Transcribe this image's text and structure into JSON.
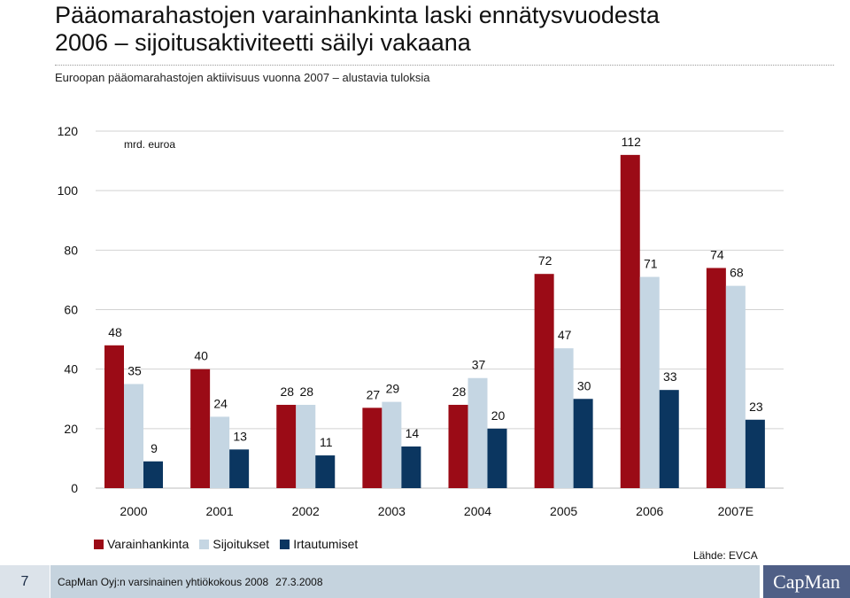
{
  "header": {
    "title_line1": "Pääomarahastojen varainhankinta laski ennätysvuodesta",
    "title_line2": "2006 – sijoitusaktiviteetti säilyi vakaana",
    "subtitle": "Euroopan pääomarahastojen aktiivisuus vuonna 2007 – alustavia tuloksia"
  },
  "colors": {
    "varainhankinta": "#9b0b16",
    "sijoitukset": "#c5d6e3",
    "irtautumiset": "#0b3660"
  },
  "chart_data": {
    "type": "bar",
    "unit_label": "mrd. euroa",
    "categories": [
      "2000",
      "2001",
      "2002",
      "2003",
      "2004",
      "2005",
      "2006",
      "2007E"
    ],
    "series": [
      {
        "name": "Varainhankinta",
        "values": [
          48,
          40,
          28,
          27,
          28,
          72,
          112,
          74
        ]
      },
      {
        "name": "Sijoitukset",
        "values": [
          35,
          24,
          28,
          29,
          37,
          47,
          71,
          68
        ]
      },
      {
        "name": "Irtautumiset",
        "values": [
          9,
          13,
          11,
          14,
          20,
          30,
          33,
          23
        ]
      }
    ],
    "ylim": [
      0,
      120
    ],
    "yticks": [
      0,
      20,
      40,
      60,
      80,
      100,
      120
    ],
    "grid": true,
    "legend": "bottom-left"
  },
  "source": "Lähde: EVCA",
  "footer": {
    "page_number": "7",
    "text": "CapMan Oyj:n varsinainen yhtiökokous 2008",
    "date": "27.3.2008",
    "logo": "CapMan"
  }
}
